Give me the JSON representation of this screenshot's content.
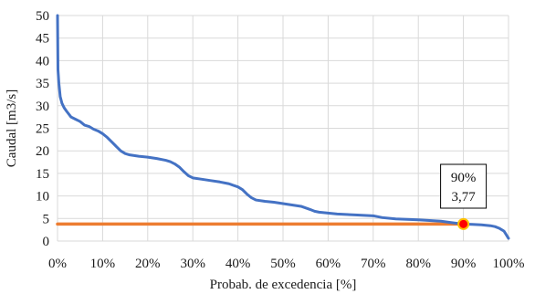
{
  "chart_data": {
    "type": "line",
    "xlabel": "Probab. de excedencia [%]",
    "ylabel": "Caudal [m3/s]",
    "xlim": [
      0,
      100
    ],
    "ylim": [
      0,
      50
    ],
    "x_ticks": [
      "0%",
      "10%",
      "20%",
      "30%",
      "40%",
      "50%",
      "60%",
      "70%",
      "80%",
      "90%",
      "100%"
    ],
    "y_ticks": [
      "0",
      "5",
      "10",
      "15",
      "20",
      "25",
      "30",
      "35",
      "40",
      "45",
      "50"
    ],
    "grid": true,
    "series": [
      {
        "color": "#4472C4",
        "x": [
          0,
          0.1,
          0.3,
          0.6,
          1,
          1.5,
          2,
          3,
          4,
          5,
          6,
          7,
          8,
          9,
          10,
          11,
          12,
          13,
          14,
          15,
          16,
          18,
          20,
          22,
          24,
          25,
          26,
          27,
          28,
          29,
          30,
          32,
          34,
          36,
          38,
          40,
          41,
          42,
          43,
          44,
          46,
          48,
          50,
          52,
          54,
          56,
          57,
          58,
          60,
          62,
          64,
          66,
          68,
          70,
          72,
          75,
          80,
          85,
          88,
          90,
          92,
          94,
          96,
          97,
          98,
          99,
          100
        ],
        "y": [
          50,
          38,
          35,
          32,
          30.5,
          29.5,
          28.8,
          27.5,
          27,
          26.5,
          25.7,
          25.4,
          24.8,
          24.4,
          23.8,
          23.0,
          22.0,
          21.0,
          20.0,
          19.4,
          19.1,
          18.8,
          18.6,
          18.3,
          17.9,
          17.6,
          17.1,
          16.4,
          15.4,
          14.5,
          14.0,
          13.7,
          13.4,
          13.1,
          12.7,
          12.0,
          11.4,
          10.4,
          9.6,
          9.1,
          8.8,
          8.6,
          8.3,
          8.0,
          7.7,
          7.0,
          6.6,
          6.4,
          6.2,
          6.0,
          5.9,
          5.8,
          5.7,
          5.6,
          5.2,
          4.9,
          4.7,
          4.4,
          4.0,
          3.77,
          3.7,
          3.6,
          3.4,
          3.2,
          2.8,
          2.2,
          0.6
        ]
      },
      {
        "color": "#ED7D31",
        "x": [
          0,
          90
        ],
        "y": [
          3.77,
          3.77
        ]
      }
    ],
    "marker": {
      "x": 90,
      "y": 3.77,
      "fill": "#FF0000",
      "stroke": "#FFC000"
    },
    "annotation": {
      "x": 90,
      "y": 3.77,
      "line1": "90%",
      "line2": "3,77"
    }
  }
}
